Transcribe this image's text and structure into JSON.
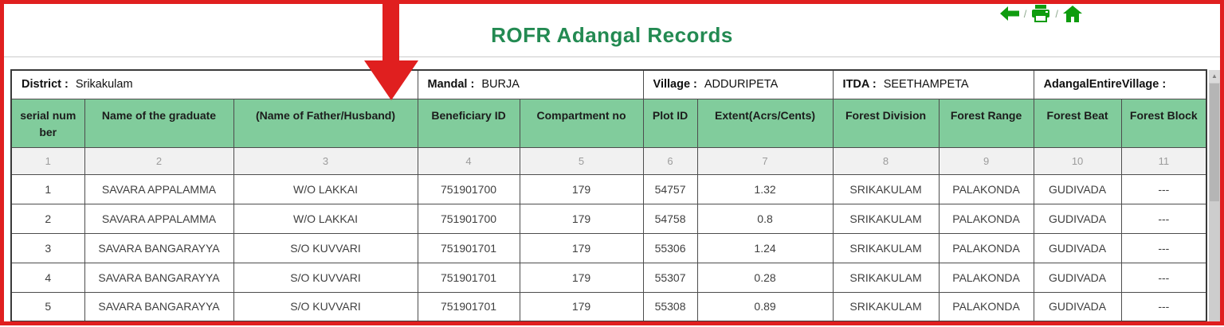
{
  "nav": {
    "back_icon": "back-arrow",
    "print_icon": "printer",
    "home_icon": "home",
    "separator": "/"
  },
  "header": {
    "title": "ROFR Adangal Records"
  },
  "info_row": [
    {
      "label": "District :",
      "value": "Srikakulam"
    },
    {
      "label": "Mandal :",
      "value": "BURJA"
    },
    {
      "label": "Village :",
      "value": "ADDURIPETA"
    },
    {
      "label": "ITDA :",
      "value": "SEETHAMPETA"
    },
    {
      "label": "AdangalEntireVillage :",
      "value": ""
    }
  ],
  "table": {
    "columns": [
      "serial number",
      "Name of the graduate",
      "(Name of Father/Husband)",
      "Beneficiary ID",
      "Compartment no",
      "Plot ID",
      "Extent(Acrs/Cents)",
      "Forest Division",
      "Forest Range",
      "Forest Beat",
      "Forest Block"
    ],
    "column_numbers": [
      "1",
      "2",
      "3",
      "4",
      "5",
      "6",
      "7",
      "8",
      "9",
      "10",
      "11"
    ],
    "rows": [
      [
        "1",
        "SAVARA APPALAMMA",
        "W/O LAKKAI",
        "751901700",
        "179",
        "54757",
        "1.32",
        "SRIKAKULAM",
        "PALAKONDA",
        "GUDIVADA",
        "---"
      ],
      [
        "2",
        "SAVARA APPALAMMA",
        "W/O LAKKAI",
        "751901700",
        "179",
        "54758",
        "0.8",
        "SRIKAKULAM",
        "PALAKONDA",
        "GUDIVADA",
        "---"
      ],
      [
        "3",
        "SAVARA BANGARAYYA",
        "S/O KUVVARI",
        "751901701",
        "179",
        "55306",
        "1.24",
        "SRIKAKULAM",
        "PALAKONDA",
        "GUDIVADA",
        "---"
      ],
      [
        "4",
        "SAVARA BANGARAYYA",
        "S/O KUVVARI",
        "751901701",
        "179",
        "55307",
        "0.28",
        "SRIKAKULAM",
        "PALAKONDA",
        "GUDIVADA",
        "---"
      ],
      [
        "5",
        "SAVARA BANGARAYYA",
        "S/O KUVVARI",
        "751901701",
        "179",
        "55308",
        "0.89",
        "SRIKAKULAM",
        "PALAKONDA",
        "GUDIVADA",
        "---"
      ]
    ]
  },
  "colors": {
    "title_green": "#238a52",
    "icon_green": "#0f9c0f",
    "cell_green": "#81cc9c",
    "annotation_red": "#e01f1f"
  }
}
